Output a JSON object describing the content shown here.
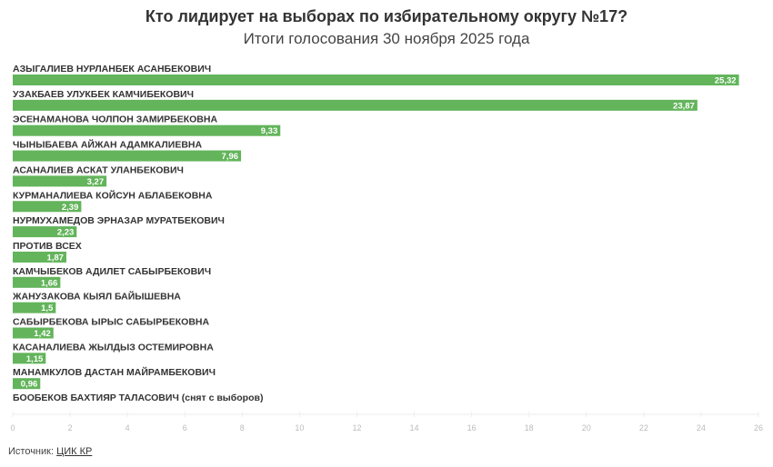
{
  "title": "Кто лидирует на выборах по избирательному округу №17?",
  "subtitle": "Итоги голосования 30 ноября 2025 года",
  "source_label": "Источник:",
  "source_link": "ЦИК КР",
  "colors": {
    "bar": "#63b45b",
    "label": "#333333",
    "axis": "#bbbbbb"
  },
  "chart_data": {
    "type": "bar",
    "orientation": "horizontal",
    "categories": [
      "АЗЫГАЛИЕВ НУРЛАНБЕК АСАНБЕКОВИЧ",
      "УЗАКБАЕВ УЛУКБЕК КАМЧИБЕКОВИЧ",
      "ЭСЕНАМАНОВА ЧОЛПОН ЗАМИРБЕКОВНА",
      "ЧЫНЫБАЕВА АЙЖАН АДАМКАЛИЕВНА",
      "АСАНАЛИЕВ АСКАТ УЛАНБЕКОВИЧ",
      "КУРМАНАЛИЕВА КОЙСУН АБЛАБЕКОВНА",
      "НУРМУХАМЕДОВ ЭРНАЗАР МУРАТБЕКОВИЧ",
      "ПРОТИВ ВСЕХ",
      "КАМЧЫБЕКОВ АДИЛЕТ САБЫРБЕКОВИЧ",
      "ЖАНУЗАКОВА КЫЯЛ БАЙЫШЕВНА",
      "САБЫРБЕКОВА ЫРЫС САБЫРБЕКОВНА",
      "КАСАНАЛИЕВА ЖЫЛДЫЗ ОСТЕМИРОВНА",
      "МАНАМКУЛОВ ДАСТАН МАЙРАМБЕКОВИЧ",
      "БООБЕКОВ БАХТИЯР ТАЛАСОВИЧ (снят с выборов)"
    ],
    "values": [
      25.32,
      23.87,
      9.33,
      7.96,
      3.27,
      2.39,
      2.23,
      1.87,
      1.66,
      1.5,
      1.42,
      1.15,
      0.96,
      null
    ],
    "value_labels": [
      "25,32",
      "23,87",
      "9,33",
      "7,96",
      "3,27",
      "2,39",
      "2,23",
      "1,87",
      "1,66",
      "1,5",
      "1,42",
      "1,15",
      "0,96",
      ""
    ],
    "xlim": [
      0,
      26
    ],
    "xticks": [
      "0",
      "2",
      "4",
      "6",
      "8",
      "10",
      "12",
      "14",
      "16",
      "18",
      "20",
      "22",
      "24",
      "26"
    ],
    "grid": false,
    "legend": "none"
  }
}
